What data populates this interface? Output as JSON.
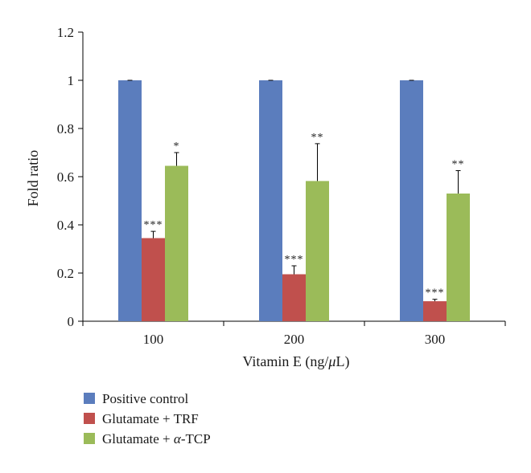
{
  "chart_data": {
    "type": "bar",
    "title": "",
    "xlabel": "Vitamin E (ng/μL)",
    "xlabel_main": "Vitamin E (ng/",
    "xlabel_unit": "μ",
    "xlabel_end": "L)",
    "ylabel": "Fold ratio",
    "ylim": [
      0,
      1.2
    ],
    "yticks": [
      0,
      0.2,
      0.4,
      0.6,
      0.8,
      1,
      1.2
    ],
    "ytick_labels": [
      "0",
      "0.2",
      "0.4",
      "0.6",
      "0.8",
      "1",
      "1.2"
    ],
    "categories": [
      "100",
      "200",
      "300"
    ],
    "series": [
      {
        "name": "Positive control",
        "color": "#5b7dbd",
        "values": [
          1.0,
          1.0,
          1.0
        ],
        "errors": [
          0,
          0,
          0
        ],
        "significance": [
          "",
          "",
          ""
        ]
      },
      {
        "name": "Glutamate + TRF",
        "color": "#c0504d",
        "values": [
          0.345,
          0.195,
          0.083
        ],
        "errors": [
          0.028,
          0.035,
          0.008
        ],
        "significance": [
          "***",
          "***",
          "***"
        ]
      },
      {
        "name": "Glutamate + α-TCP",
        "color": "#9bbb59",
        "values": [
          0.645,
          0.582,
          0.53
        ],
        "errors": [
          0.055,
          0.155,
          0.095
        ],
        "significance": [
          "*",
          "**",
          "**"
        ]
      }
    ],
    "legend_position": "bottom-left",
    "grid": false
  }
}
